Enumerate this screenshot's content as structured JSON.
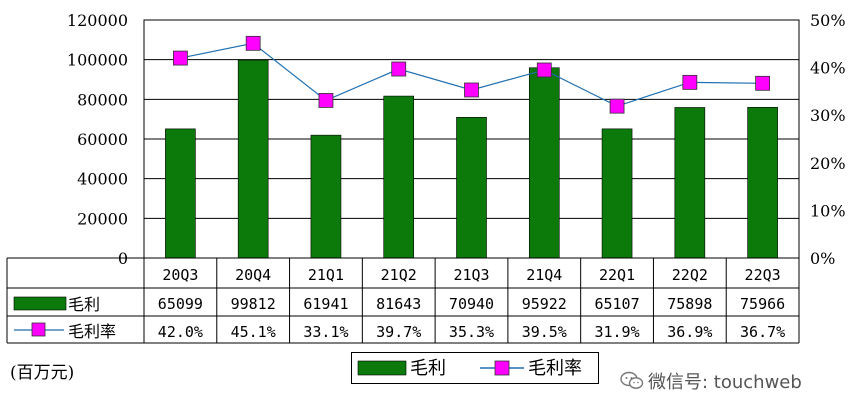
{
  "chart_data": {
    "type": "bar+line",
    "categories": [
      "20Q3",
      "20Q4",
      "21Q1",
      "21Q2",
      "21Q3",
      "21Q4",
      "22Q1",
      "22Q2",
      "22Q3"
    ],
    "series": [
      {
        "name": "毛利",
        "type": "bar",
        "axis": "left",
        "color": "#0b7a0b",
        "values": [
          65099,
          99812,
          61941,
          81643,
          70940,
          95922,
          65107,
          75898,
          75966
        ],
        "labels": [
          "65099",
          "99812",
          "61941",
          "81643",
          "70940",
          "95922",
          "65107",
          "75898",
          "75966"
        ]
      },
      {
        "name": "毛利率",
        "type": "line",
        "axis": "right",
        "color": "#1f6fb0",
        "marker_color": "#ff00ff",
        "values": [
          42.0,
          45.1,
          33.1,
          39.7,
          35.3,
          39.5,
          31.9,
          36.9,
          36.7
        ],
        "labels": [
          "42.0%",
          "45.1%",
          "33.1%",
          "39.7%",
          "35.3%",
          "39.5%",
          "31.9%",
          "36.9%",
          "36.7%"
        ]
      }
    ],
    "y_left": {
      "ylim": [
        0,
        120000
      ],
      "ticks": [
        "0",
        "20000",
        "40000",
        "60000",
        "80000",
        "100000",
        "120000"
      ]
    },
    "y_right": {
      "ylim": [
        0,
        50
      ],
      "ticks": [
        "0%",
        "10%",
        "20%",
        "30%",
        "40%",
        "50%"
      ]
    },
    "grid": true,
    "legend_position": "bottom-center",
    "data_table": true
  },
  "unit_label": "(百万元)",
  "watermark": "微信号: touchweb",
  "watermark_icon": "wechat-icon"
}
